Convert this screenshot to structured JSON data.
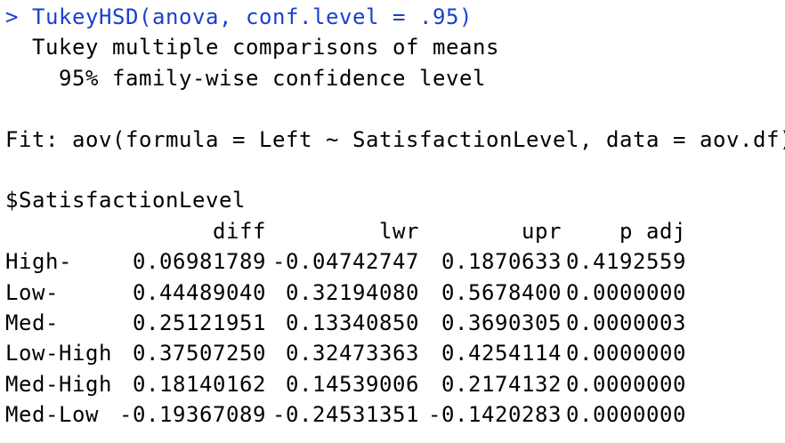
{
  "console": {
    "prompt": "> ",
    "command": "TukeyHSD(anova, conf.level = .95)",
    "title_line": "  Tukey multiple comparisons of means",
    "conf_line": "    95% family-wise confidence level",
    "fit_line": "Fit: aov(formula = Left ~ SatisfactionLevel, data = aov.df)",
    "section": "$SatisfactionLevel",
    "columns": [
      "diff",
      "lwr",
      "upr",
      "p adj"
    ],
    "rows": [
      {
        "name": "High-",
        "diff": "0.06981789",
        "lwr": "-0.04742747",
        "upr": "0.1870633",
        "padj": "0.4192559"
      },
      {
        "name": "Low-",
        "diff": "0.44489040",
        "lwr": "0.32194080",
        "upr": "0.5678400",
        "padj": "0.0000000"
      },
      {
        "name": "Med-",
        "diff": "0.25121951",
        "lwr": "0.13340850",
        "upr": "0.3690305",
        "padj": "0.0000003"
      },
      {
        "name": "Low-High",
        "diff": "0.37507250",
        "lwr": "0.32473363",
        "upr": "0.4254114",
        "padj": "0.0000000"
      },
      {
        "name": "Med-High",
        "diff": "0.18140162",
        "lwr": "0.14539006",
        "upr": "0.2174132",
        "padj": "0.0000000"
      },
      {
        "name": "Med-Low",
        "diff": "-0.19367089",
        "lwr": "-0.24531351",
        "upr": "-0.1420283",
        "padj": "0.0000000"
      }
    ]
  },
  "colors": {
    "command": "#1a3fd1",
    "output": "#000000",
    "background": "#ffffff"
  }
}
